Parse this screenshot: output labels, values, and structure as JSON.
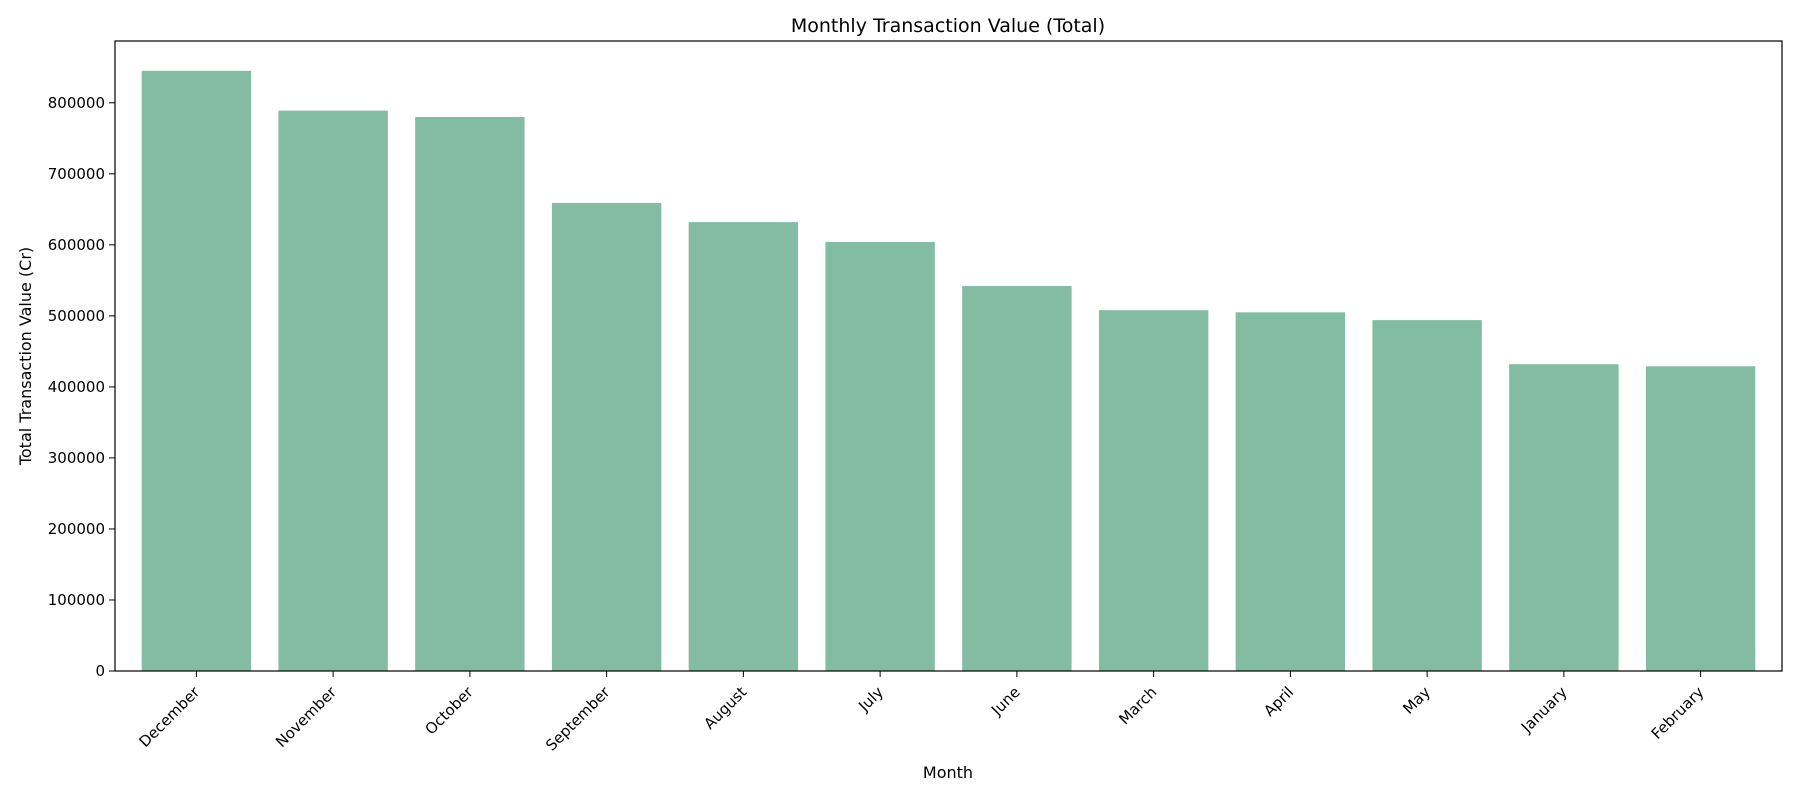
{
  "chart_data": {
    "type": "bar",
    "title": "Monthly Transaction Value (Total)",
    "xlabel": "Month",
    "ylabel": "Total Transaction Value (Cr)",
    "categories": [
      "December",
      "November",
      "October",
      "September",
      "August",
      "July",
      "June",
      "March",
      "April",
      "May",
      "January",
      "February"
    ],
    "values": [
      845000,
      789000,
      780000,
      659000,
      632000,
      604000,
      542000,
      508000,
      505000,
      494000,
      432000,
      429000
    ],
    "ylim": [
      0,
      887000
    ],
    "yticks": [
      0,
      100000,
      200000,
      300000,
      400000,
      500000,
      600000,
      700000,
      800000
    ],
    "ytick_labels": [
      "0",
      "100000",
      "200000",
      "300000",
      "400000",
      "500000",
      "600000",
      "700000",
      "800000"
    ],
    "bar_color": "#83bca3",
    "grid": false,
    "legend": "none"
  }
}
